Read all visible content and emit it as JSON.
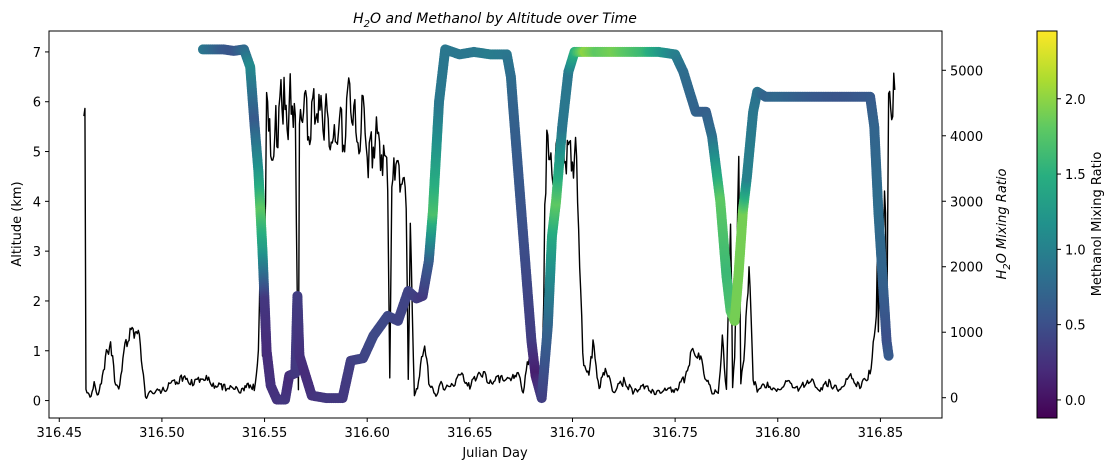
{
  "chart_data": {
    "type": "scatter",
    "title_parts": [
      "H",
      "2",
      "O and Methanol by Altitude over Time"
    ],
    "xlabel": "Julian Day",
    "ylabel_left": "Altitude (km)",
    "ylabel_right_parts": [
      "H",
      "2",
      "O Mixing Ratio"
    ],
    "colorbar_label": "Methanol Mixing Ratio",
    "colormap": "viridis",
    "line_color": "#000000",
    "xlim": [
      316.445,
      316.88
    ],
    "ylim_left": [
      -0.35,
      7.42
    ],
    "ylim_right": [
      -310,
      5600
    ],
    "clim": [
      -0.12,
      2.45
    ],
    "xticks": [
      "316.45",
      "316.50",
      "316.55",
      "316.60",
      "316.65",
      "316.70",
      "316.75",
      "316.80",
      "316.85"
    ],
    "yticks_left": [
      "0",
      "1",
      "2",
      "3",
      "4",
      "5",
      "6",
      "7"
    ],
    "yticks_right": [
      "0",
      "1000",
      "2000",
      "3000",
      "4000",
      "5000"
    ],
    "colorbar_ticks": [
      "0.0",
      "0.5",
      "1.0",
      "1.5",
      "2.0"
    ],
    "h2o_series": [
      [
        316.462,
        4300
      ],
      [
        316.4625,
        4500
      ],
      [
        316.463,
        150
      ],
      [
        316.465,
        0
      ],
      [
        316.467,
        200
      ],
      [
        316.469,
        20
      ],
      [
        316.472,
        520
      ],
      [
        316.475,
        880
      ],
      [
        316.477,
        280
      ],
      [
        316.479,
        120
      ],
      [
        316.482,
        820
      ],
      [
        316.485,
        1000
      ],
      [
        316.488,
        1080
      ],
      [
        316.49,
        640
      ],
      [
        316.492,
        20
      ],
      [
        316.495,
        80
      ],
      [
        316.5,
        100
      ],
      [
        316.505,
        220
      ],
      [
        316.51,
        300
      ],
      [
        316.515,
        240
      ],
      [
        316.52,
        320
      ],
      [
        316.525,
        200
      ],
      [
        316.53,
        160
      ],
      [
        316.535,
        120
      ],
      [
        316.54,
        120
      ],
      [
        316.543,
        200
      ],
      [
        316.545,
        150
      ],
      [
        316.547,
        650
      ],
      [
        316.548,
        2300
      ],
      [
        316.549,
        600
      ],
      [
        316.5505,
        3000
      ],
      [
        316.551,
        4800
      ],
      [
        316.553,
        3700
      ],
      [
        316.555,
        4000
      ],
      [
        316.557,
        4300
      ],
      [
        316.559,
        4600
      ],
      [
        316.561,
        4100
      ],
      [
        316.563,
        4700
      ],
      [
        316.565,
        4300
      ],
      [
        316.5665,
        100
      ],
      [
        316.567,
        3900
      ],
      [
        316.569,
        4400
      ],
      [
        316.572,
        4000
      ],
      [
        316.575,
        4700
      ],
      [
        316.578,
        4100
      ],
      [
        316.58,
        4500
      ],
      [
        316.583,
        3800
      ],
      [
        316.586,
        4200
      ],
      [
        316.589,
        4050
      ],
      [
        316.592,
        4700
      ],
      [
        316.595,
        3900
      ],
      [
        316.598,
        4300
      ],
      [
        316.601,
        3600
      ],
      [
        316.604,
        4100
      ],
      [
        316.607,
        3800
      ],
      [
        316.61,
        3400
      ],
      [
        316.611,
        300
      ],
      [
        316.612,
        3200
      ],
      [
        316.614,
        3500
      ],
      [
        316.617,
        3300
      ],
      [
        316.619,
        3100
      ],
      [
        316.62,
        300
      ],
      [
        316.621,
        2600
      ],
      [
        316.623,
        20
      ],
      [
        316.625,
        200
      ],
      [
        316.628,
        900
      ],
      [
        316.63,
        250
      ],
      [
        316.633,
        30
      ],
      [
        316.636,
        200
      ],
      [
        316.64,
        120
      ],
      [
        316.645,
        350
      ],
      [
        316.65,
        180
      ],
      [
        316.655,
        420
      ],
      [
        316.66,
        220
      ],
      [
        316.665,
        300
      ],
      [
        316.67,
        250
      ],
      [
        316.673,
        420
      ],
      [
        316.676,
        100
      ],
      [
        316.679,
        700
      ],
      [
        316.681,
        200
      ],
      [
        316.683,
        450
      ],
      [
        316.685,
        80
      ],
      [
        316.686,
        1500
      ],
      [
        316.6865,
        3000
      ],
      [
        316.688,
        4200
      ],
      [
        316.69,
        3300
      ],
      [
        316.692,
        3700
      ],
      [
        316.694,
        3900
      ],
      [
        316.697,
        3800
      ],
      [
        316.7,
        3600
      ],
      [
        316.702,
        3700
      ],
      [
        316.705,
        600
      ],
      [
        316.708,
        300
      ],
      [
        316.71,
        800
      ],
      [
        316.713,
        150
      ],
      [
        316.716,
        450
      ],
      [
        316.72,
        100
      ],
      [
        316.725,
        250
      ],
      [
        316.73,
        80
      ],
      [
        316.735,
        180
      ],
      [
        316.74,
        60
      ],
      [
        316.745,
        150
      ],
      [
        316.75,
        120
      ],
      [
        316.755,
        300
      ],
      [
        316.758,
        700
      ],
      [
        316.762,
        650
      ],
      [
        316.765,
        300
      ],
      [
        316.768,
        100
      ],
      [
        316.771,
        50
      ],
      [
        316.773,
        900
      ],
      [
        316.775,
        100
      ],
      [
        316.777,
        2800
      ],
      [
        316.778,
        200
      ],
      [
        316.779,
        700
      ],
      [
        316.781,
        3500
      ],
      [
        316.782,
        200
      ],
      [
        316.784,
        800
      ],
      [
        316.786,
        2100
      ],
      [
        316.788,
        300
      ],
      [
        316.79,
        120
      ],
      [
        316.795,
        220
      ],
      [
        316.8,
        90
      ],
      [
        316.805,
        250
      ],
      [
        316.81,
        110
      ],
      [
        316.815,
        280
      ],
      [
        316.82,
        140
      ],
      [
        316.825,
        220
      ],
      [
        316.83,
        100
      ],
      [
        316.835,
        320
      ],
      [
        316.84,
        150
      ],
      [
        316.845,
        380
      ],
      [
        316.848,
        1200
      ],
      [
        316.8485,
        2100
      ],
      [
        316.849,
        1000
      ],
      [
        316.85,
        2500
      ],
      [
        316.851,
        1400
      ],
      [
        316.852,
        3300
      ],
      [
        316.8525,
        2600
      ],
      [
        316.853,
        600
      ],
      [
        316.854,
        4300
      ],
      [
        316.856,
        4500
      ],
      [
        316.857,
        4700
      ]
    ],
    "altitude_series": [
      [
        316.52,
        7.05,
        0.9
      ],
      [
        316.53,
        7.05,
        0.6
      ],
      [
        316.535,
        7.02,
        0.55
      ],
      [
        316.54,
        7.05,
        0.75
      ],
      [
        316.543,
        6.7,
        1.1
      ],
      [
        316.545,
        5.6,
        0.6
      ],
      [
        316.547,
        4.6,
        1.2
      ],
      [
        316.548,
        3.8,
        1.8
      ],
      [
        316.549,
        3.0,
        1.3
      ],
      [
        316.55,
        2.0,
        0.3
      ],
      [
        316.551,
        1.0,
        0.2
      ],
      [
        316.553,
        0.3,
        0.25
      ],
      [
        316.556,
        0.02,
        0.25
      ],
      [
        316.56,
        0.02,
        0.3
      ],
      [
        316.562,
        0.5,
        0.2
      ],
      [
        316.565,
        0.55,
        0.3
      ],
      [
        316.566,
        2.1,
        0.35
      ],
      [
        316.567,
        0.9,
        0.25
      ],
      [
        316.57,
        0.5,
        0.2
      ],
      [
        316.573,
        0.1,
        0.25
      ],
      [
        316.58,
        0.05,
        0.3
      ],
      [
        316.588,
        0.05,
        0.3
      ],
      [
        316.592,
        0.8,
        0.35
      ],
      [
        316.598,
        0.85,
        0.4
      ],
      [
        316.603,
        1.3,
        0.45
      ],
      [
        316.61,
        1.7,
        0.45
      ],
      [
        316.615,
        1.6,
        0.4
      ],
      [
        316.62,
        2.2,
        0.4
      ],
      [
        316.624,
        2.05,
        0.35
      ],
      [
        316.627,
        2.1,
        0.3
      ],
      [
        316.63,
        2.8,
        0.6
      ],
      [
        316.632,
        3.8,
        1.7
      ],
      [
        316.635,
        6.0,
        0.9
      ],
      [
        316.638,
        7.05,
        0.9
      ],
      [
        316.645,
        6.95,
        0.9
      ],
      [
        316.652,
        7.0,
        0.9
      ],
      [
        316.66,
        6.95,
        0.95
      ],
      [
        316.668,
        6.95,
        0.9
      ],
      [
        316.67,
        6.5,
        0.8
      ],
      [
        316.671,
        5.95,
        0.7
      ],
      [
        316.68,
        1.2,
        0.35
      ],
      [
        316.682,
        0.5,
        0.1
      ],
      [
        316.685,
        0.05,
        0.35
      ],
      [
        316.688,
        1.5,
        0.7
      ],
      [
        316.69,
        3.3,
        1.4
      ],
      [
        316.692,
        4.0,
        1.8
      ],
      [
        316.695,
        5.5,
        0.9
      ],
      [
        316.698,
        6.6,
        0.9
      ],
      [
        316.701,
        7.0,
        1.5
      ],
      [
        316.706,
        7.0,
        2.0
      ],
      [
        316.712,
        7.0,
        1.8
      ],
      [
        316.72,
        7.0,
        1.9
      ],
      [
        316.735,
        7.0,
        1.6
      ],
      [
        316.742,
        7.0,
        1.3
      ],
      [
        316.75,
        6.95,
        1.0
      ],
      [
        316.754,
        6.6,
        0.8
      ],
      [
        316.76,
        5.8,
        0.7
      ],
      [
        316.765,
        5.8,
        0.65
      ],
      [
        316.768,
        5.3,
        0.8
      ],
      [
        316.772,
        4.0,
        1.8
      ],
      [
        316.775,
        2.5,
        1.6
      ],
      [
        316.777,
        1.8,
        1.7
      ],
      [
        316.779,
        1.6,
        1.9
      ],
      [
        316.781,
        2.6,
        1.9
      ],
      [
        316.783,
        3.8,
        1.9
      ],
      [
        316.785,
        4.5,
        1.0
      ],
      [
        316.788,
        5.8,
        0.9
      ],
      [
        316.79,
        6.2,
        0.85
      ],
      [
        316.794,
        6.1,
        0.7
      ],
      [
        316.8,
        6.1,
        0.75
      ],
      [
        316.818,
        6.1,
        0.6
      ],
      [
        316.83,
        6.1,
        0.55
      ],
      [
        316.845,
        6.1,
        0.6
      ],
      [
        316.847,
        5.5,
        0.7
      ],
      [
        316.849,
        3.8,
        0.8
      ],
      [
        316.851,
        2.5,
        0.7
      ],
      [
        316.853,
        1.2,
        0.5
      ],
      [
        316.854,
        0.9,
        0.6
      ]
    ]
  }
}
